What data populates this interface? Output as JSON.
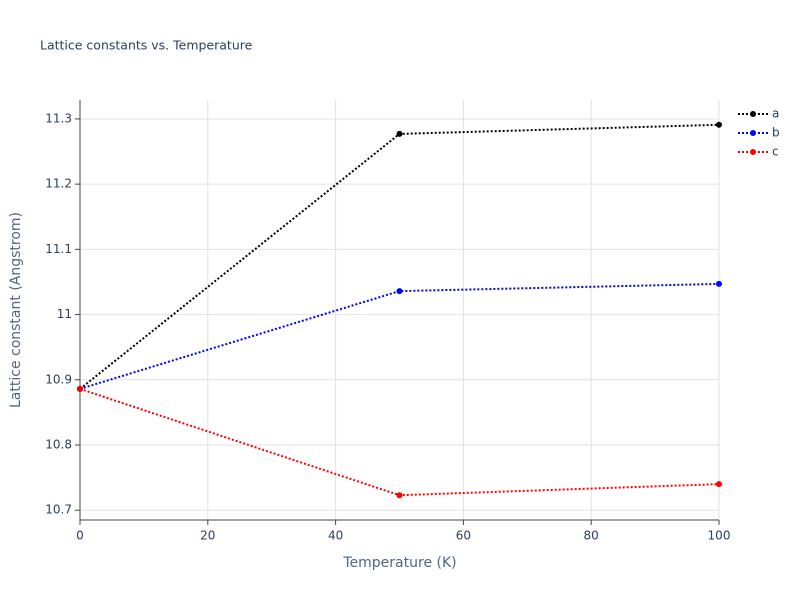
{
  "chart_data": {
    "type": "line",
    "title": "Lattice constants vs. Temperature",
    "x_label": "Temperature (K)",
    "y_label": "Lattice constant (Angstrom)",
    "x": [
      0,
      50,
      100
    ],
    "series": [
      {
        "name": "a",
        "color": "#000000",
        "values": [
          10.886,
          11.277,
          11.291
        ]
      },
      {
        "name": "b",
        "color": "#0000ff",
        "values": [
          10.886,
          11.036,
          11.047
        ]
      },
      {
        "name": "c",
        "color": "#ff0000",
        "values": [
          10.886,
          10.723,
          10.74
        ]
      }
    ],
    "xlim": [
      0,
      100
    ],
    "xticks": [
      0,
      20,
      40,
      60,
      80,
      100
    ],
    "ylim": [
      10.685,
      11.329
    ],
    "yticks": [
      10.7,
      10.8,
      10.9,
      11,
      11.1,
      11.2,
      11.3
    ],
    "grid": true,
    "line_style": "dotted",
    "legend": "right"
  }
}
